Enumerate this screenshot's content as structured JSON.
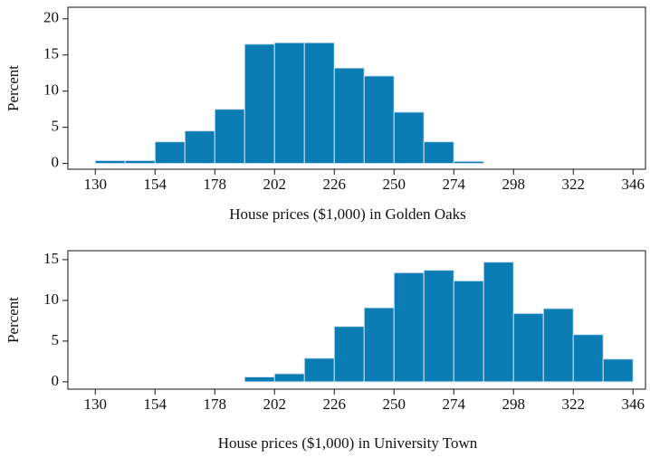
{
  "chart_data": [
    {
      "type": "histogram",
      "xlabel": "House prices ($1,000) in Golden Oaks",
      "ylabel": "Percent",
      "bins": [
        130,
        142,
        154,
        166,
        178,
        190,
        202,
        214,
        226,
        238,
        250,
        262,
        274,
        286
      ],
      "values": [
        0.4,
        0.4,
        3,
        4.5,
        7.5,
        16.5,
        16.7,
        16.7,
        13.2,
        12.1,
        7.1,
        3,
        0.3
      ],
      "color": "#0b7db4",
      "xlim": [
        119,
        351
      ],
      "ylim": [
        -0.8,
        21.6
      ],
      "xticks": [
        130,
        154,
        178,
        202,
        226,
        250,
        274,
        298,
        322,
        346
      ],
      "yticks": [
        0,
        5,
        10,
        15,
        20
      ]
    },
    {
      "type": "histogram",
      "xlabel": "House prices ($1,000) in University Town",
      "ylabel": "Percent",
      "bins": [
        190,
        202,
        214,
        226,
        238,
        250,
        262,
        274,
        286,
        298,
        310,
        322,
        334,
        346
      ],
      "values": [
        0.6,
        1.0,
        2.9,
        6.8,
        9.1,
        13.4,
        13.7,
        12.4,
        14.7,
        8.4,
        9.0,
        5.8,
        2.8
      ],
      "color": "#0b7db4",
      "xlim": [
        119,
        351
      ],
      "ylim": [
        -0.9,
        16.1
      ],
      "xticks": [
        130,
        154,
        178,
        202,
        226,
        250,
        274,
        298,
        322,
        346
      ],
      "yticks": [
        0,
        5,
        10,
        15
      ]
    }
  ]
}
